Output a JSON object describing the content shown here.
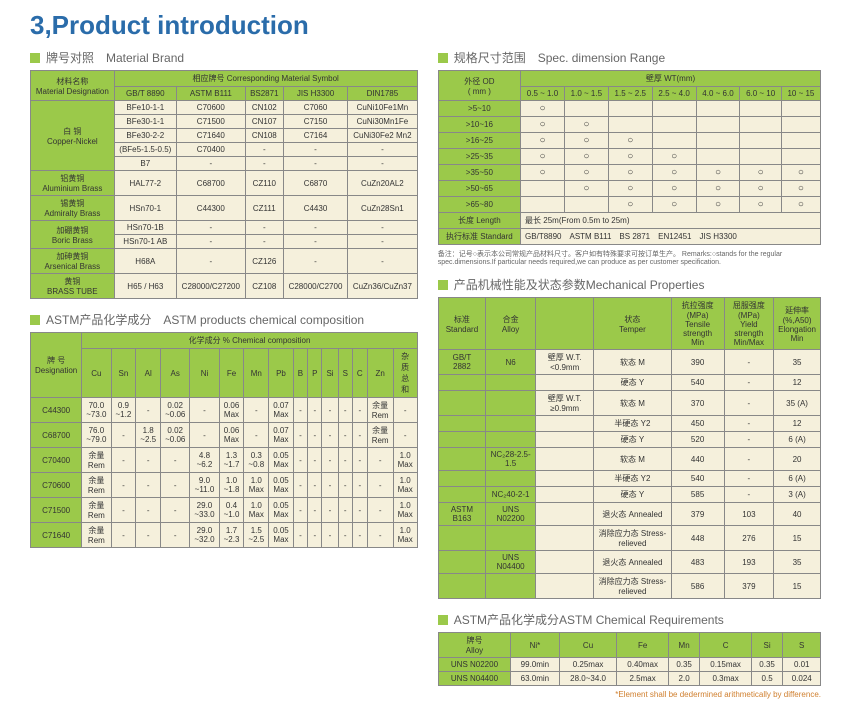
{
  "page_title": "3,Product introduction",
  "sections": {
    "material_brand": {
      "title": "牌号对照　Material Brand"
    },
    "spec_dimension": {
      "title": "规格尺寸范围　Spec. dimension Range"
    },
    "chemical": {
      "title": "ASTM产品化学成分　ASTM products chemical composition"
    },
    "mechanical": {
      "title": "产品机械性能及状态参数Mechanical Properties"
    },
    "astm_req": {
      "title": "ASTM产品化学成分ASTM Chemical Requirements"
    }
  },
  "material_brand": {
    "headers": {
      "name": "材料名称\nMaterial Designation",
      "corr": "相应牌号 Corresponding Material Symbol",
      "gbt": "GB/T 8890",
      "astm": "ASTM B111",
      "bs": "BS2871",
      "jis": "JIS H3300",
      "din": "DIN1785"
    },
    "rows": [
      {
        "name": "白 铜\nCopper-Nickel",
        "sub": [
          [
            "BFe10-1-1",
            "C70600",
            "CN102",
            "C7060",
            "CuNi10Fe1Mn"
          ],
          [
            "BFe30-1-1",
            "C71500",
            "CN107",
            "C7150",
            "CuNi30Mn1Fe"
          ],
          [
            "BFe30-2-2",
            "C71640",
            "CN108",
            "C7164",
            "CuNi30Fe2 Mn2"
          ],
          [
            "(BFe5-1.5-0.5)",
            "C70400",
            "-",
            "-",
            "-"
          ],
          [
            "B7",
            "-",
            "-",
            "-",
            "-"
          ]
        ]
      },
      {
        "name": "铝黄铜\nAluminium Brass",
        "sub": [
          [
            "HAL77-2",
            "C68700",
            "CZ110",
            "C6870",
            "CuZn20AL2"
          ]
        ]
      },
      {
        "name": "锡黄铜\nAdmiralty Brass",
        "sub": [
          [
            "HSn70-1",
            "C44300",
            "CZ111",
            "C4430",
            "CuZn28Sn1"
          ]
        ]
      },
      {
        "name": "加硼黄铜\nBoric Brass",
        "sub": [
          [
            "HSn70-1B",
            "-",
            "-",
            "-",
            "-"
          ],
          [
            "HSn70-1 AB",
            "-",
            "-",
            "-",
            "-"
          ]
        ]
      },
      {
        "name": "加砷黄铜\nArsenical Brass",
        "sub": [
          [
            "H68A",
            "-",
            "CZ126",
            "-",
            "-"
          ]
        ]
      },
      {
        "name": "黄铜\nBRASS TUBE",
        "sub": [
          [
            "H65 / H63",
            "C28000/C27200",
            "CZ108",
            "C28000/C2700",
            "CuZn36/CuZn37"
          ]
        ]
      }
    ]
  },
  "spec": {
    "od": "外径 OD\n( mm )",
    "wt": "壁厚 WT(mm)",
    "cols": [
      "0.5 ~ 1.0",
      "1.0 ~ 1.5",
      "1.5 ~ 2.5",
      "2.5 ~ 4.0",
      "4.0 ~ 6.0",
      "6.0 ~ 10",
      "10 ~ 15"
    ],
    "rows": [
      {
        "r": ">5~10",
        "c": [
          1,
          0,
          0,
          0,
          0,
          0,
          0
        ]
      },
      {
        "r": ">10~16",
        "c": [
          1,
          1,
          0,
          0,
          0,
          0,
          0
        ]
      },
      {
        "r": ">16~25",
        "c": [
          1,
          1,
          1,
          0,
          0,
          0,
          0
        ]
      },
      {
        "r": ">25~35",
        "c": [
          1,
          1,
          1,
          1,
          0,
          0,
          0
        ]
      },
      {
        "r": ">35~50",
        "c": [
          1,
          1,
          1,
          1,
          1,
          1,
          1
        ]
      },
      {
        "r": ">50~65",
        "c": [
          0,
          1,
          1,
          1,
          1,
          1,
          1
        ]
      },
      {
        "r": ">65~80",
        "c": [
          0,
          0,
          1,
          1,
          1,
          1,
          1
        ]
      }
    ],
    "length_label": "长度 Length",
    "length_val": "最长 25m(From 0.5m to 25m)",
    "std_label": "执行标准 Standard",
    "std_val": "GB/T8890　ASTM B111　BS 2871　EN12451　JIS H3300",
    "note": "备注：记号○表示本公司常规产品材料尺寸。客户如有特殊要求可按订单生产。\nRemarks:○stands for the regular spec.dimensions.If particular needs required,we can produce as per customer specification."
  },
  "chemical": {
    "head1": "牌 号\nDesignation",
    "head2": "化学成分 % Chemical composition",
    "cols": [
      "Cu",
      "Sn",
      "Al",
      "As",
      "Ni",
      "Fe",
      "Mn",
      "Pb",
      "B",
      "P",
      "Si",
      "S",
      "C",
      "Zn",
      "杂质总和"
    ],
    "rows": [
      [
        "C44300",
        "70.0\n~73.0",
        "0.9\n~1.2",
        "-",
        "0.02\n~0.06",
        "-",
        "0.06\nMax",
        "-",
        "0.07\nMax",
        "-",
        "-",
        "-",
        "-",
        "-",
        "余量\nRem",
        "-"
      ],
      [
        "C68700",
        "76.0\n~79.0",
        "-",
        "1.8\n~2.5",
        "0.02\n~0.06",
        "-",
        "0.06\nMax",
        "-",
        "0.07\nMax",
        "-",
        "-",
        "-",
        "-",
        "-",
        "余量\nRem",
        "-"
      ],
      [
        "C70400",
        "余量\nRem",
        "-",
        "-",
        "-",
        "4.8\n~6.2",
        "1.3\n~1.7",
        "0.3\n~0.8",
        "0.05\nMax",
        "-",
        "-",
        "-",
        "-",
        "-",
        "-",
        "1.0\nMax"
      ],
      [
        "C70600",
        "余量\nRem",
        "-",
        "-",
        "-",
        "9.0\n~11.0",
        "1.0\n~1.8",
        "1.0\nMax",
        "0.05\nMax",
        "-",
        "-",
        "-",
        "-",
        "-",
        "-",
        "1.0\nMax"
      ],
      [
        "C71500",
        "余量\nRem",
        "-",
        "-",
        "-",
        "29.0\n~33.0",
        "0.4\n~1.0",
        "1.0\nMax",
        "0.05\nMax",
        "-",
        "-",
        "-",
        "-",
        "-",
        "-",
        "1.0\nMax"
      ],
      [
        "C71640",
        "余量\nRem",
        "-",
        "-",
        "-",
        "29.0\n~32.0",
        "1.7\n~2.3",
        "1.5\n~2.5",
        "0.05\nMax",
        "-",
        "-",
        "-",
        "-",
        "-",
        "-",
        "1.0\nMax"
      ]
    ]
  },
  "mech": {
    "headers": [
      "标准\nStandard",
      "合金\nAlloy",
      "",
      "状态\nTemper",
      "抗拉强度\n(MPa)\nTensile strength\nMin",
      "屈服强度\n(MPa)\nYield strength\nMin/Max",
      "延伸率\n(%,A50)\nElongation\nMin"
    ],
    "rows": [
      [
        "GB/T 2882",
        "N6",
        "壁厚 W.T.\n<0.9mm",
        "软态 M",
        "390",
        "-",
        "35"
      ],
      [
        "",
        "",
        "",
        "硬态 Y",
        "540",
        "-",
        "12"
      ],
      [
        "",
        "",
        "壁厚 W.T.\n≥0.9mm",
        "软态 M",
        "370",
        "-",
        "35 (A)"
      ],
      [
        "",
        "",
        "",
        "半硬态 Y2",
        "450",
        "-",
        "12"
      ],
      [
        "",
        "",
        "",
        "硬态 Y",
        "520",
        "-",
        "6 (A)"
      ],
      [
        "",
        "NC₂28-2.5-1.5",
        "",
        "软态 M",
        "440",
        "-",
        "20"
      ],
      [
        "",
        "",
        "",
        "半硬态 Y2",
        "540",
        "-",
        "6 (A)"
      ],
      [
        "",
        "NC₂40-2-1",
        "",
        "硬态 Y",
        "585",
        "-",
        "3 (A)"
      ],
      [
        "ASTM B163",
        "UNS N02200",
        "",
        "退火态 Annealed",
        "379",
        "103",
        "40"
      ],
      [
        "",
        "",
        "",
        "消除应力态 Stress-relieved",
        "448",
        "276",
        "15"
      ],
      [
        "",
        "UNS N04400",
        "",
        "退火态 Annealed",
        "483",
        "193",
        "35"
      ],
      [
        "",
        "",
        "",
        "消除应力态 Stress-relieved",
        "586",
        "379",
        "15"
      ]
    ]
  },
  "astm_req": {
    "headers": [
      "牌号\nAlloy",
      "Ni*",
      "Cu",
      "Fe",
      "Mn",
      "C",
      "Si",
      "S"
    ],
    "rows": [
      [
        "UNS N02200",
        "99.0min",
        "0.25max",
        "0.40max",
        "0.35",
        "0.15max",
        "0.35",
        "0.01"
      ],
      [
        "UNS N04400",
        "63.0min",
        "28.0~34.0",
        "2.5max",
        "2.0",
        "0.3max",
        "0.5",
        "0.024"
      ]
    ],
    "footnote": "*Element shall be dedermined arithmetically by difference."
  }
}
